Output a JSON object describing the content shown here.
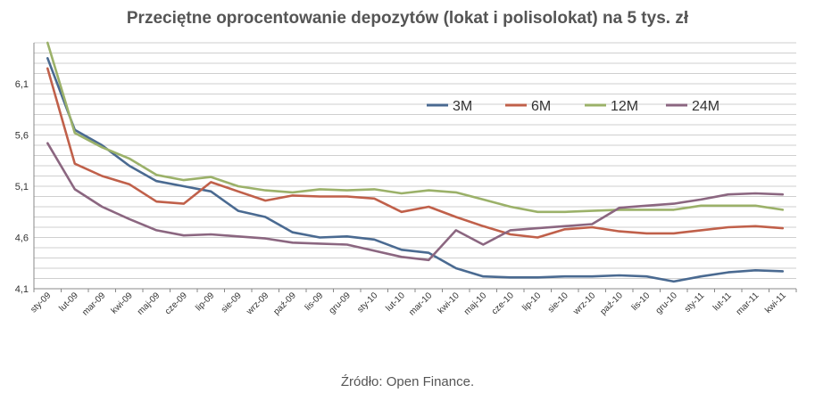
{
  "chart_data": {
    "type": "line",
    "title": "Przeciętne oprocentowanie depozytów (lokat i polisolokat) na 5 tys. zł",
    "xlabel": "",
    "ylabel": "",
    "categories": [
      "sty-09",
      "lut-09",
      "mar-09",
      "kwi-09",
      "maj-09",
      "cze-09",
      "lip-09",
      "sie-09",
      "wrz-09",
      "paź-09",
      "lis-09",
      "gru-09",
      "sty-10",
      "lut-10",
      "mar-10",
      "kwi-10",
      "maj-10",
      "cze-10",
      "lip-10",
      "sie-10",
      "wrz-10",
      "paź-10",
      "lis-10",
      "gru-10",
      "sty-11",
      "lut-11",
      "mar-11",
      "kwi-11"
    ],
    "y_ticks": [
      "4,1",
      "4,6",
      "5,1",
      "5,6",
      "6,1"
    ],
    "ylim": [
      4.1,
      6.5
    ],
    "grid": true,
    "legend_position": "top-right",
    "series": [
      {
        "name": "3M",
        "color": "#4a6a91",
        "values": [
          6.35,
          5.65,
          5.5,
          5.3,
          5.15,
          5.1,
          5.05,
          4.86,
          4.8,
          4.65,
          4.6,
          4.61,
          4.58,
          4.48,
          4.45,
          4.3,
          4.22,
          4.21,
          4.21,
          4.22,
          4.22,
          4.23,
          4.22,
          4.17,
          4.22,
          4.26,
          4.28,
          4.27
        ]
      },
      {
        "name": "6M",
        "color": "#c0604a",
        "values": [
          6.25,
          5.32,
          5.2,
          5.12,
          4.95,
          4.93,
          5.14,
          5.05,
          4.96,
          5.01,
          5.0,
          5.0,
          4.98,
          4.85,
          4.9,
          4.8,
          4.71,
          4.63,
          4.6,
          4.68,
          4.7,
          4.66,
          4.64,
          4.64,
          4.67,
          4.7,
          4.71,
          4.69
        ]
      },
      {
        "name": "12M",
        "color": "#9bb169",
        "values": [
          6.5,
          5.62,
          5.48,
          5.37,
          5.21,
          5.16,
          5.19,
          5.1,
          5.06,
          5.04,
          5.07,
          5.06,
          5.07,
          5.03,
          5.06,
          5.04,
          4.97,
          4.9,
          4.85,
          4.85,
          4.86,
          4.87,
          4.87,
          4.87,
          4.91,
          4.91,
          4.91,
          4.87
        ]
      },
      {
        "name": "24M",
        "color": "#8b6680",
        "values": [
          5.52,
          5.07,
          4.9,
          4.78,
          4.67,
          4.62,
          4.63,
          4.61,
          4.59,
          4.55,
          4.54,
          4.53,
          4.47,
          4.41,
          4.38,
          4.67,
          4.53,
          4.67,
          4.69,
          4.71,
          4.73,
          4.89,
          4.91,
          4.93,
          4.97,
          5.02,
          5.03,
          5.02
        ]
      }
    ]
  },
  "source_text": "Źródło: Open Finance."
}
